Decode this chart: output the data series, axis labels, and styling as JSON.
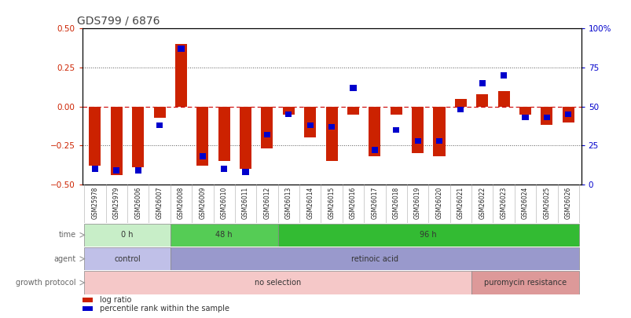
{
  "title": "GDS799 / 6876",
  "samples": [
    "GSM25978",
    "GSM25979",
    "GSM26006",
    "GSM26007",
    "GSM26008",
    "GSM26009",
    "GSM26010",
    "GSM26011",
    "GSM26012",
    "GSM26013",
    "GSM26014",
    "GSM26015",
    "GSM26016",
    "GSM26017",
    "GSM26018",
    "GSM26019",
    "GSM26020",
    "GSM26021",
    "GSM26022",
    "GSM26023",
    "GSM26024",
    "GSM26025",
    "GSM26026"
  ],
  "log_ratio": [
    -0.38,
    -0.44,
    -0.39,
    -0.07,
    0.4,
    -0.38,
    -0.35,
    -0.4,
    -0.27,
    -0.05,
    -0.2,
    -0.35,
    -0.05,
    -0.32,
    -0.05,
    -0.3,
    -0.32,
    0.05,
    0.08,
    0.1,
    -0.05,
    -0.12,
    -0.1
  ],
  "percentile": [
    10,
    9,
    9,
    38,
    87,
    18,
    10,
    8,
    32,
    45,
    38,
    37,
    62,
    22,
    35,
    28,
    28,
    48,
    65,
    70,
    43,
    43,
    45
  ],
  "bar_color": "#cc2200",
  "dot_color": "#0000cc",
  "ylim_left": [
    -0.5,
    0.5
  ],
  "ylim_right": [
    0,
    100
  ],
  "yticks_left": [
    -0.5,
    -0.25,
    0,
    0.25,
    0.5
  ],
  "yticks_right": [
    0,
    25,
    50,
    75,
    100
  ],
  "hline_zero_color": "#cc0000",
  "hline_dotted_color": "#555555",
  "time_groups": [
    {
      "label": "0 h",
      "start": 0,
      "end": 4,
      "color": "#c8eec8"
    },
    {
      "label": "48 h",
      "start": 4,
      "end": 9,
      "color": "#55cc55"
    },
    {
      "label": "96 h",
      "start": 9,
      "end": 23,
      "color": "#33bb33"
    }
  ],
  "agent_groups": [
    {
      "label": "control",
      "start": 0,
      "end": 4,
      "color": "#c0c0e8"
    },
    {
      "label": "retinoic acid",
      "start": 4,
      "end": 23,
      "color": "#9999cc"
    }
  ],
  "growth_groups": [
    {
      "label": "no selection",
      "start": 0,
      "end": 18,
      "color": "#f5c8c8"
    },
    {
      "label": "puromycin resistance",
      "start": 18,
      "end": 23,
      "color": "#dd9999"
    }
  ],
  "row_labels": [
    "time",
    "agent",
    "growth protocol"
  ],
  "legend_items": [
    {
      "label": "log ratio",
      "color": "#cc2200"
    },
    {
      "label": "percentile rank within the sample",
      "color": "#0000cc"
    }
  ],
  "bg_color": "#ffffff",
  "axis_spine_color": "#000000",
  "title_color": "#444444",
  "left_tick_color": "#cc2200",
  "right_tick_color": "#0000cc",
  "xtick_bg_color": "#dddddd",
  "row_label_color": "#666666",
  "row_arrow_color": "#999999"
}
